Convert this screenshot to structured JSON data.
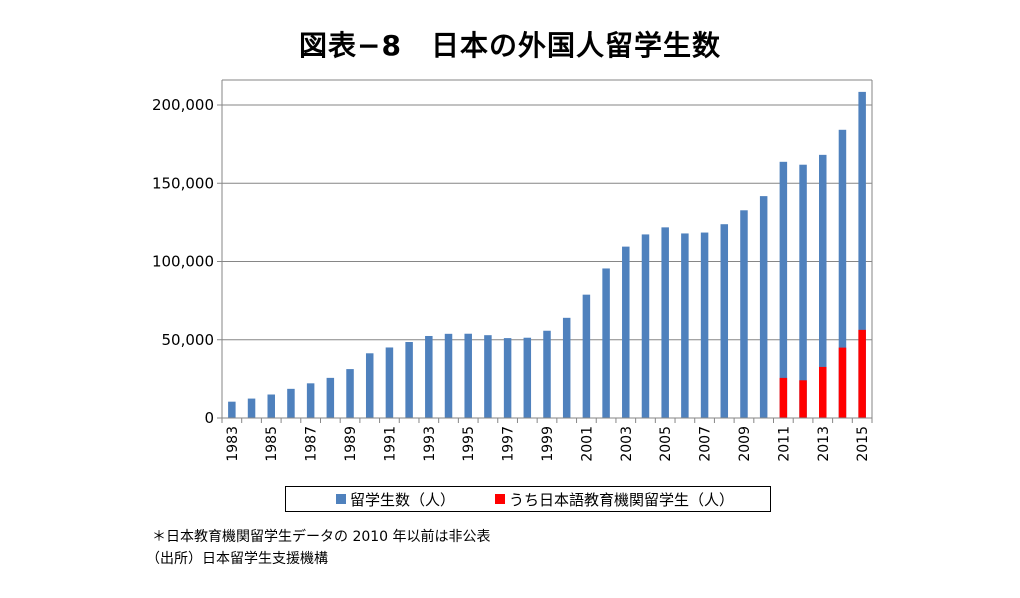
{
  "title": "図表−8　日本の外国人留学生数",
  "chart_data": {
    "type": "bar",
    "categories": [
      "1983",
      "1984",
      "1985",
      "1986",
      "1987",
      "1988",
      "1989",
      "1990",
      "1991",
      "1992",
      "1993",
      "1994",
      "1995",
      "1996",
      "1997",
      "1998",
      "1999",
      "2000",
      "2001",
      "2002",
      "2003",
      "2004",
      "2005",
      "2006",
      "2007",
      "2008",
      "2009",
      "2010",
      "2011",
      "2012",
      "2013",
      "2014",
      "2015"
    ],
    "x_tick_labels": [
      "1983",
      "1985",
      "1987",
      "1989",
      "1991",
      "1993",
      "1995",
      "1997",
      "1999",
      "2001",
      "2003",
      "2005",
      "2007",
      "2009",
      "2011",
      "2013",
      "2015"
    ],
    "y_tick_labels": [
      "0",
      "50,000",
      "100,000",
      "150,000",
      "200,000"
    ],
    "ylim": [
      0,
      200000
    ],
    "y_ticks": [
      0,
      50000,
      100000,
      150000,
      200000
    ],
    "grid": true,
    "series": [
      {
        "name": "留学生数（人）",
        "color": "#4f81bd",
        "values": [
          10428,
          12410,
          15009,
          18631,
          22154,
          25643,
          31251,
          41347,
          45066,
          48561,
          52405,
          53787,
          53847,
          52921,
          51047,
          51298,
          55755,
          64011,
          78812,
          95550,
          109508,
          117302,
          121812,
          117927,
          118498,
          123829,
          132720,
          141774,
          163697,
          161848,
          168145,
          184155,
          208379
        ]
      },
      {
        "name": "うち日本語教育機関留学生（人）",
        "color": "#ff0000",
        "values": [
          null,
          null,
          null,
          null,
          null,
          null,
          null,
          null,
          null,
          null,
          null,
          null,
          null,
          null,
          null,
          null,
          null,
          null,
          null,
          null,
          null,
          null,
          null,
          null,
          null,
          null,
          null,
          null,
          25622,
          24092,
          32626,
          44970,
          56317
        ]
      }
    ],
    "legend_position": "bottom"
  },
  "notes": {
    "line1": "＊日本教育機関留学生データの 2010 年以前は非公表",
    "line2": "（出所）日本留学生支援機構"
  }
}
